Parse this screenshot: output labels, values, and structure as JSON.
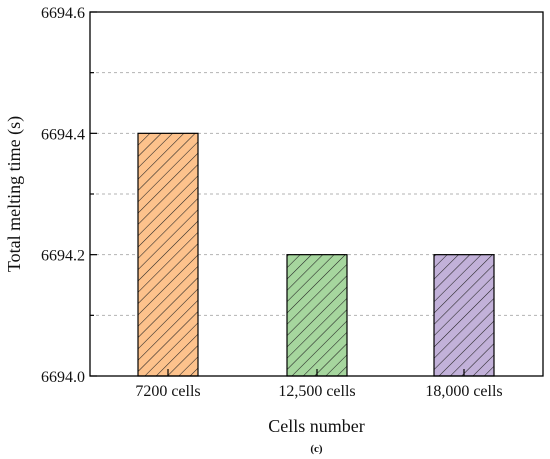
{
  "chart_data": {
    "type": "bar",
    "categories": [
      "7200 cells",
      "12,500 cells",
      "18,000 cells"
    ],
    "values": [
      6694.4,
      6694.2,
      6694.2
    ],
    "xlabel": "Cells number",
    "ylabel": "Total melting time (s)",
    "ylim": [
      6694.0,
      6694.6
    ],
    "yticks": [
      6694.0,
      6694.2,
      6694.4,
      6694.6
    ],
    "ytick_labels": [
      "6694.0",
      "6694.2",
      "6694.4",
      "6694.6"
    ],
    "grid": "horizontal dashed",
    "bar_colors": [
      "#fdc28c",
      "#a6d69e",
      "#c2b1d9"
    ],
    "bar_pattern": "diagonal hatch",
    "caption": "(c)"
  }
}
